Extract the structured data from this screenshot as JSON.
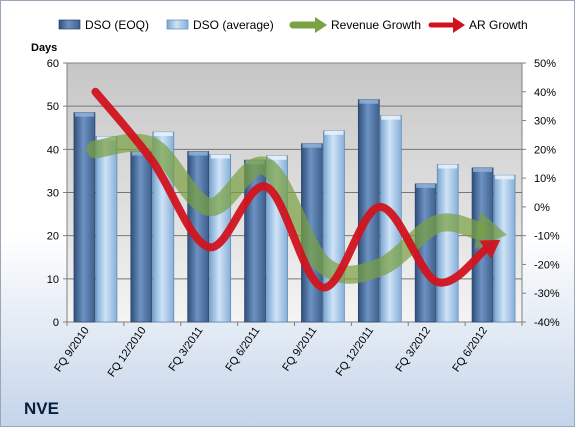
{
  "company": "NVE",
  "colors": {
    "eoq": "#4a6f9e",
    "avg": "#9cc3e6",
    "revenue": "#7aa142",
    "ar": "#d1131e",
    "plot_bg": "#c0c0c0"
  },
  "chart_data": {
    "type": "bar",
    "y_title": "Days",
    "categories": [
      "FQ 9/2010",
      "FQ 12/2010",
      "FQ 3/2011",
      "FQ 6/2011",
      "FQ 9/2011",
      "FQ 12/2011",
      "FQ 3/2012",
      "FQ 6/2012"
    ],
    "ylim": [
      0,
      60
    ],
    "y_ticks": [
      "0",
      "10",
      "20",
      "30",
      "40",
      "50",
      "60"
    ],
    "y2lim": [
      -40,
      50
    ],
    "y2_ticks": [
      "-40%",
      "-30%",
      "-20%",
      "-10%",
      "0%",
      "10%",
      "20%",
      "30%",
      "40%",
      "50%"
    ],
    "grid": true,
    "legend": "top",
    "series": [
      {
        "name": "DSO (EOQ)",
        "kind": "bar",
        "values": [
          48.5,
          39.5,
          39.5,
          37.5,
          41.3,
          51.5,
          32.0,
          35.7
        ]
      },
      {
        "name": "DSO (average)",
        "kind": "bar",
        "values": [
          43.0,
          44.0,
          38.8,
          38.5,
          44.3,
          47.8,
          36.5,
          34.0
        ]
      },
      {
        "name": "Revenue Growth",
        "kind": "arrow-line",
        "axis": "right",
        "values": [
          20,
          21,
          0,
          14,
          -20,
          -21,
          -6,
          -9
        ]
      },
      {
        "name": "AR Growth",
        "kind": "arrow-line",
        "axis": "right",
        "values": [
          40,
          16,
          -14,
          7,
          -28,
          0,
          -26,
          -13
        ]
      }
    ]
  }
}
